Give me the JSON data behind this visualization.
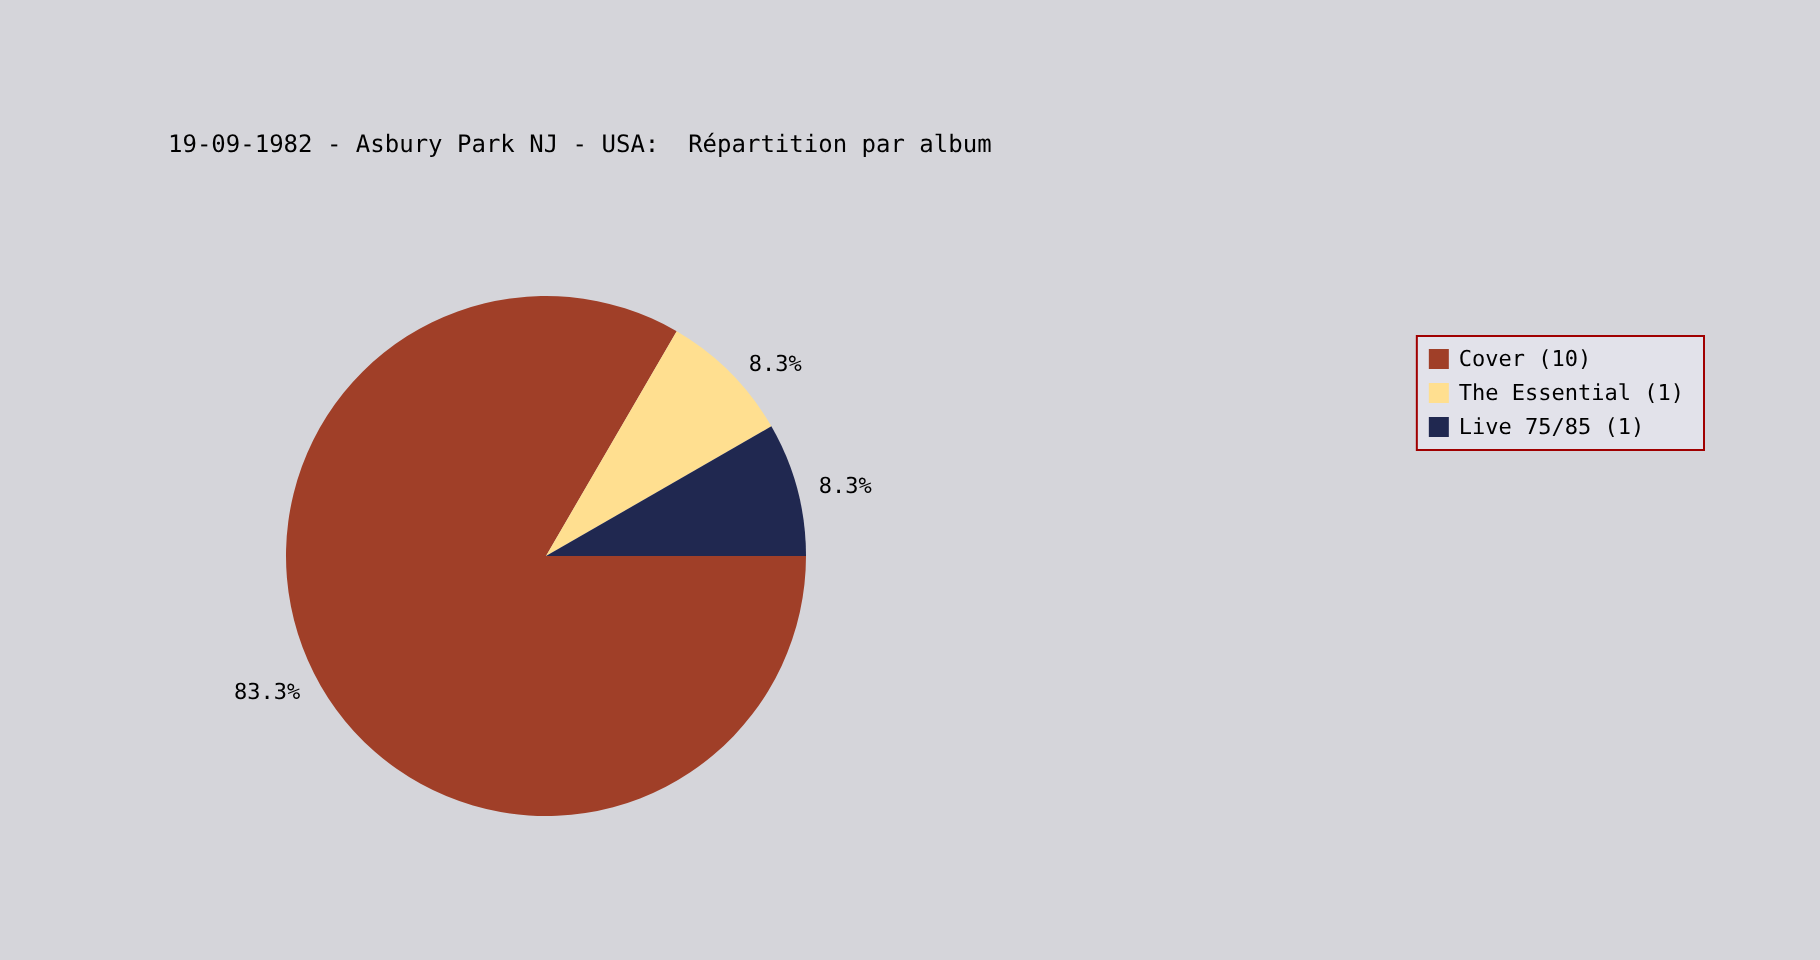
{
  "chart_data": {
    "type": "pie",
    "title": "19-09-1982 - Asbury Park NJ - USA:  Répartition par album",
    "categories": [
      "Cover (10)",
      "The Essential (1)",
      "Live 75/85 (1)"
    ],
    "values": [
      83.3,
      8.3,
      8.3
    ],
    "colors": [
      "#a03f28",
      "#ffdf90",
      "#202850"
    ],
    "value_labels": [
      "83.3%",
      "8.3%",
      "8.3%"
    ],
    "legend": "right"
  }
}
